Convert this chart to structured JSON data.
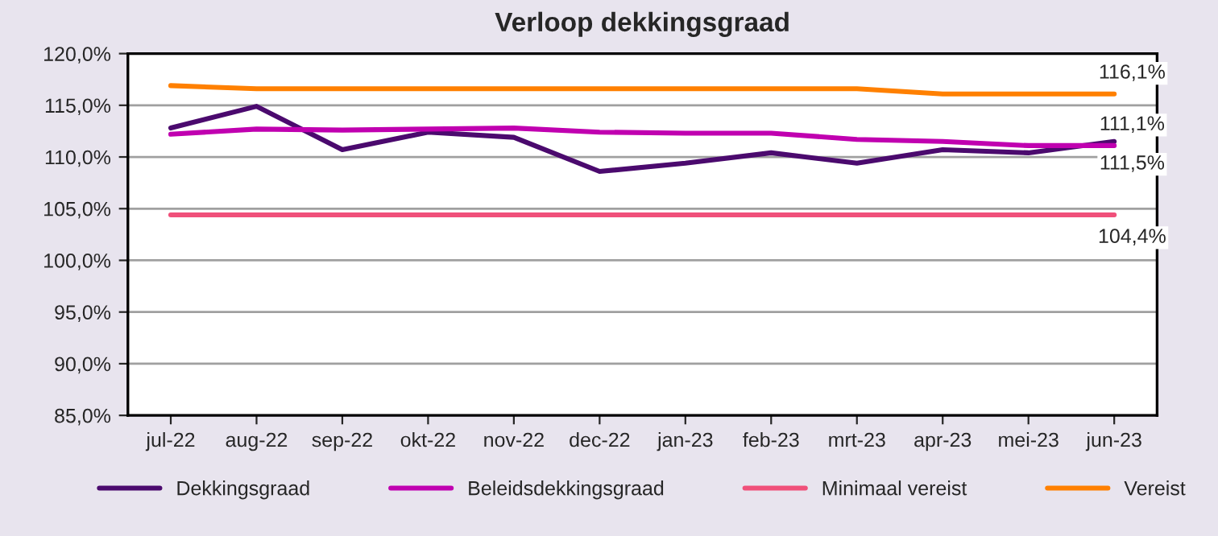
{
  "chart_data": {
    "type": "line",
    "title": "Verloop dekkingsgraad",
    "categories": [
      "jul-22",
      "aug-22",
      "sep-22",
      "okt-22",
      "nov-22",
      "dec-22",
      "jan-23",
      "feb-23",
      "mrt-23",
      "apr-23",
      "mei-23",
      "jun-23"
    ],
    "series": [
      {
        "name": "Dekkingsgraad",
        "color": "#4b0a6e",
        "values": [
          112.8,
          114.9,
          110.7,
          112.4,
          111.9,
          108.6,
          109.4,
          110.4,
          109.4,
          110.7,
          110.4,
          111.5
        ],
        "value_labels": [
          null,
          null,
          null,
          null,
          null,
          null,
          null,
          null,
          null,
          null,
          null,
          "111,5%"
        ]
      },
      {
        "name": "Beleidsdekkingsgraad",
        "color": "#c000b0",
        "values": [
          112.2,
          112.7,
          112.6,
          112.7,
          112.8,
          112.4,
          112.3,
          112.3,
          111.7,
          111.5,
          111.1,
          111.1
        ],
        "value_labels": [
          null,
          null,
          null,
          null,
          null,
          null,
          null,
          null,
          null,
          null,
          null,
          "111,1%"
        ]
      },
      {
        "name": "Minimaal vereist",
        "color": "#f0507a",
        "values": [
          104.4,
          104.4,
          104.4,
          104.4,
          104.4,
          104.4,
          104.4,
          104.4,
          104.4,
          104.4,
          104.4,
          104.4
        ],
        "value_labels": [
          null,
          null,
          null,
          null,
          null,
          null,
          null,
          null,
          null,
          null,
          null,
          "104,4%"
        ]
      },
      {
        "name": "Vereist",
        "color": "#ff8000",
        "values": [
          116.9,
          116.6,
          116.6,
          116.6,
          116.6,
          116.6,
          116.6,
          116.6,
          116.6,
          116.1,
          116.1,
          116.1
        ],
        "value_labels": [
          null,
          null,
          null,
          null,
          null,
          null,
          null,
          null,
          null,
          null,
          null,
          "116,1%"
        ]
      }
    ],
    "ylim": [
      85,
      120
    ],
    "yticks": [
      {
        "value": 85,
        "label": "85,0%"
      },
      {
        "value": 90,
        "label": "90,0%"
      },
      {
        "value": 95,
        "label": "95,0%"
      },
      {
        "value": 100,
        "label": "100,0%"
      },
      {
        "value": 105,
        "label": "105,0%"
      },
      {
        "value": 110,
        "label": "110,0%"
      },
      {
        "value": 115,
        "label": "115,0%"
      },
      {
        "value": 120,
        "label": "120,0%"
      }
    ],
    "grid": "y",
    "legend": "bottom",
    "marker": "none",
    "line_style": "solid"
  }
}
